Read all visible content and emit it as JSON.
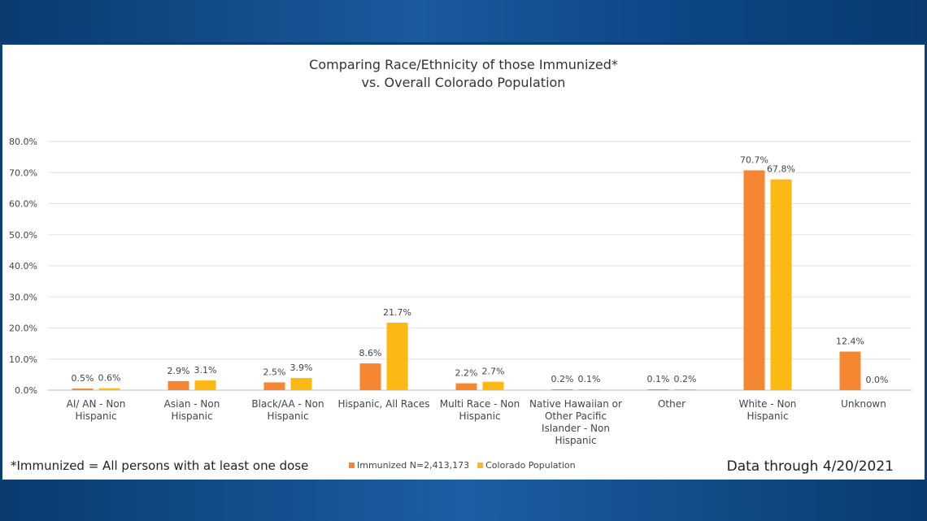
{
  "colors": {
    "immunized": "#f58733",
    "population": "#fdb913",
    "grid": "#e2e2e2"
  },
  "footnote": "*Immunized = All persons with at least one dose",
  "data_through": "Data through 4/20/2021",
  "chart_data": {
    "type": "bar",
    "title_line1": "Comparing Race/Ethnicity of those Immunized*",
    "title_line2": "vs. Overall Colorado Population",
    "ylim": [
      0,
      80
    ],
    "yticks": [
      "0.0%",
      "10.0%",
      "20.0%",
      "30.0%",
      "40.0%",
      "50.0%",
      "60.0%",
      "70.0%",
      "80.0%"
    ],
    "categories": [
      [
        "AI/ AN - Non",
        "Hispanic"
      ],
      [
        "Asian - Non",
        "Hispanic"
      ],
      [
        "Black/AA - Non",
        "Hispanic"
      ],
      [
        "Hispanic, All Races"
      ],
      [
        "Multi Race - Non",
        "Hispanic"
      ],
      [
        "Native Hawaiian or",
        "Other Pacific",
        "Islander - Non",
        "Hispanic"
      ],
      [
        "Other"
      ],
      [
        "White - Non",
        "Hispanic"
      ],
      [
        "Unknown"
      ]
    ],
    "series": [
      {
        "name": "Immunized N=2,413,173",
        "values": [
          0.5,
          2.9,
          2.5,
          8.6,
          2.2,
          0.2,
          0.1,
          70.7,
          12.4
        ],
        "labels": [
          "0.5%",
          "2.9%",
          "2.5%",
          "8.6%",
          "2.2%",
          "0.2%",
          "0.1%",
          "70.7%",
          "12.4%"
        ]
      },
      {
        "name": "Colorado Population",
        "values": [
          0.6,
          3.1,
          3.9,
          21.7,
          2.7,
          0.1,
          0.2,
          67.8,
          0.0
        ],
        "labels": [
          "0.6%",
          "3.1%",
          "3.9%",
          "21.7%",
          "2.7%",
          "0.1%",
          "0.2%",
          "67.8%",
          "0.0%"
        ]
      }
    ],
    "grid": true,
    "legend": "bottom"
  }
}
